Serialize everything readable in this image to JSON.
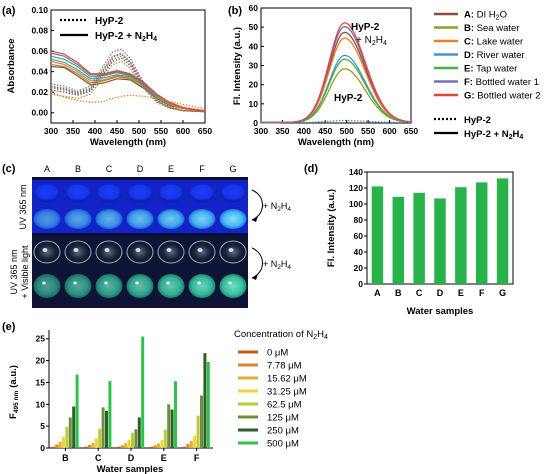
{
  "panels": {
    "a": "(a)",
    "b": "(b)",
    "c": "(c)",
    "d": "(d)",
    "e": "(e)"
  },
  "colors": {
    "A": "#8e4b3e",
    "B": "#9a9a2a",
    "C": "#f07f2a",
    "D": "#4a90d9",
    "E": "#46b040",
    "F": "#7a6fb5",
    "G": "#e5443c",
    "bar_green": "#27b24a",
    "conc": [
      "#c75c14",
      "#d98a28",
      "#e0b030",
      "#f2d23a",
      "#b8cc3e",
      "#6e8f3e",
      "#2f5e2a",
      "#2fc24a"
    ]
  },
  "chart_data": [
    {
      "id": "a",
      "type": "line",
      "xlabel": "Wavelength (nm)",
      "ylabel": "Absorbance",
      "xlim": [
        300,
        650
      ],
      "ylim": [
        -0.01,
        0.1
      ],
      "xticks": [
        300,
        350,
        400,
        450,
        500,
        550,
        600,
        650
      ],
      "yticks": [
        0.0,
        0.02,
        0.04,
        0.06,
        0.08,
        0.1
      ],
      "ytick_labels": [
        "0.00",
        "0.02",
        "0.04",
        "0.06",
        "0.08",
        "0.10"
      ],
      "legend": [
        {
          "label_a": "HyP-2",
          "label_b": "",
          "style": "dotted"
        },
        {
          "label_a": "HyP-2 + N",
          "label_b": "2",
          "label_c": "H",
          "label_d": "4",
          "style": "solid"
        }
      ],
      "series": [
        {
          "sample": "A",
          "style": "solid",
          "x": [
            300,
            330,
            360,
            390,
            420,
            450,
            480,
            510,
            540,
            570,
            600,
            630,
            650
          ],
          "y": [
            0.045,
            0.044,
            0.036,
            0.027,
            0.029,
            0.033,
            0.032,
            0.024,
            0.014,
            0.007,
            0.004,
            0.002,
            0.002
          ]
        },
        {
          "sample": "B",
          "style": "solid",
          "x": [
            300,
            330,
            360,
            390,
            420,
            450,
            480,
            510,
            540,
            570,
            600,
            630,
            650
          ],
          "y": [
            0.047,
            0.045,
            0.038,
            0.029,
            0.031,
            0.035,
            0.033,
            0.025,
            0.015,
            0.008,
            0.004,
            0.002,
            0.002
          ]
        },
        {
          "sample": "C",
          "style": "solid",
          "x": [
            300,
            330,
            360,
            390,
            420,
            450,
            480,
            510,
            540,
            570,
            600,
            630,
            650
          ],
          "y": [
            0.05,
            0.047,
            0.04,
            0.031,
            0.032,
            0.036,
            0.034,
            0.026,
            0.016,
            0.008,
            0.004,
            0.002,
            0.002
          ]
        },
        {
          "sample": "D",
          "style": "solid",
          "x": [
            300,
            330,
            360,
            390,
            420,
            450,
            480,
            510,
            540,
            570,
            600,
            630,
            650
          ],
          "y": [
            0.052,
            0.049,
            0.042,
            0.033,
            0.034,
            0.037,
            0.035,
            0.027,
            0.016,
            0.009,
            0.005,
            0.003,
            0.002
          ]
        },
        {
          "sample": "E",
          "style": "solid",
          "x": [
            300,
            330,
            360,
            390,
            420,
            450,
            480,
            510,
            540,
            570,
            600,
            630,
            650
          ],
          "y": [
            0.055,
            0.052,
            0.045,
            0.035,
            0.036,
            0.039,
            0.036,
            0.028,
            0.017,
            0.009,
            0.005,
            0.003,
            0.002
          ]
        },
        {
          "sample": "F",
          "style": "solid",
          "x": [
            300,
            330,
            360,
            390,
            420,
            450,
            480,
            510,
            540,
            570,
            600,
            630,
            650
          ],
          "y": [
            0.058,
            0.055,
            0.047,
            0.037,
            0.037,
            0.04,
            0.037,
            0.029,
            0.018,
            0.01,
            0.005,
            0.003,
            0.002
          ]
        },
        {
          "sample": "G",
          "style": "solid",
          "x": [
            300,
            330,
            360,
            390,
            420,
            450,
            480,
            510,
            540,
            570,
            600,
            630,
            650
          ],
          "y": [
            0.06,
            0.057,
            0.049,
            0.038,
            0.038,
            0.041,
            0.038,
            0.03,
            0.018,
            0.01,
            0.005,
            0.003,
            0.002
          ]
        },
        {
          "sample": "A",
          "style": "dotted",
          "x": [
            300,
            330,
            360,
            390,
            420,
            440,
            460,
            480,
            510,
            540,
            570,
            600,
            650
          ],
          "y": [
            0.022,
            0.02,
            0.017,
            0.021,
            0.038,
            0.05,
            0.053,
            0.046,
            0.026,
            0.011,
            0.005,
            0.002,
            0.001
          ]
        },
        {
          "sample": "B",
          "style": "dotted",
          "x": [
            300,
            330,
            360,
            390,
            420,
            440,
            460,
            480,
            510,
            540,
            570,
            600,
            650
          ],
          "y": [
            0.018,
            0.016,
            0.014,
            0.018,
            0.035,
            0.047,
            0.05,
            0.043,
            0.024,
            0.01,
            0.004,
            0.002,
            0.001
          ]
        },
        {
          "sample": "C",
          "style": "dotted",
          "x": [
            300,
            330,
            360,
            390,
            420,
            440,
            460,
            480,
            510,
            540,
            570,
            600,
            650
          ],
          "y": [
            0.02,
            0.015,
            0.012,
            0.01,
            0.011,
            0.014,
            0.016,
            0.017,
            0.016,
            0.014,
            0.011,
            0.008,
            0.004
          ]
        },
        {
          "sample": "D",
          "style": "dotted",
          "x": [
            300,
            330,
            360,
            390,
            420,
            440,
            460,
            480,
            510,
            540,
            570,
            600,
            650
          ],
          "y": [
            0.024,
            0.022,
            0.018,
            0.022,
            0.04,
            0.052,
            0.055,
            0.048,
            0.027,
            0.011,
            0.005,
            0.002,
            0.001
          ]
        },
        {
          "sample": "E",
          "style": "dotted",
          "x": [
            300,
            330,
            360,
            390,
            420,
            440,
            460,
            480,
            510,
            540,
            570,
            600,
            650
          ],
          "y": [
            0.026,
            0.024,
            0.02,
            0.024,
            0.043,
            0.055,
            0.058,
            0.05,
            0.028,
            0.012,
            0.005,
            0.002,
            0.001
          ]
        },
        {
          "sample": "F",
          "style": "dotted",
          "x": [
            300,
            330,
            360,
            390,
            420,
            440,
            460,
            480,
            510,
            540,
            570,
            600,
            650
          ],
          "y": [
            0.028,
            0.026,
            0.021,
            0.026,
            0.046,
            0.059,
            0.062,
            0.053,
            0.03,
            0.013,
            0.006,
            0.002,
            0.001
          ]
        },
        {
          "sample": "G",
          "style": "dotted",
          "x": [
            300,
            330,
            360,
            390,
            420,
            440,
            460,
            480,
            510,
            540,
            570,
            600,
            650
          ],
          "y": [
            0.025,
            0.023,
            0.019,
            0.023,
            0.042,
            0.054,
            0.057,
            0.049,
            0.028,
            0.012,
            0.005,
            0.002,
            0.001
          ]
        }
      ]
    },
    {
      "id": "b",
      "type": "line",
      "xlabel": "Wavelength (nm)",
      "ylabel": "Fl. Intensity (a.u.)",
      "xlim": [
        300,
        650
      ],
      "ylim": [
        0,
        60
      ],
      "xticks": [
        300,
        350,
        400,
        450,
        500,
        550,
        600,
        650
      ],
      "yticks": [
        0,
        10,
        20,
        30,
        40,
        50,
        60
      ],
      "annotation_1": "HyP-2",
      "annotation_1b": "+ N",
      "annotation_1c": "2",
      "annotation_1d": "H",
      "annotation_1e": "4",
      "annotation_2": "HyP-2",
      "peak_x": 495,
      "width_nm": 48,
      "series": [
        {
          "sample": "A",
          "style": "solid",
          "peak": 47
        },
        {
          "sample": "B",
          "style": "solid",
          "peak": 28
        },
        {
          "sample": "C",
          "style": "solid",
          "peak": 44
        },
        {
          "sample": "D",
          "style": "solid",
          "peak": 35
        },
        {
          "sample": "E",
          "style": "solid",
          "peak": 33
        },
        {
          "sample": "F",
          "style": "solid",
          "peak": 50
        },
        {
          "sample": "G",
          "style": "solid",
          "peak": 52
        },
        {
          "sample": "D",
          "style": "dotted",
          "peak": 1
        }
      ]
    },
    {
      "id": "d",
      "type": "bar",
      "categories": [
        "A",
        "B",
        "C",
        "D",
        "E",
        "F",
        "G"
      ],
      "values": [
        122,
        109,
        114,
        107,
        121,
        127,
        132
      ],
      "xlabel": "Water samples",
      "ylabel": "Fl. Intensity (a.u.)",
      "ylim": [
        0,
        140
      ],
      "yticks": [
        0,
        20,
        40,
        60,
        80,
        100,
        120,
        140
      ]
    },
    {
      "id": "e",
      "type": "bar",
      "categories": [
        "B",
        "C",
        "D",
        "E",
        "F"
      ],
      "xlabel": "Water samples",
      "ylabel_main": "F",
      "ylabel_sub": "495 nm",
      "ylabel_unit": "(a.u.)",
      "ylim": [
        0,
        27
      ],
      "yticks": [
        0,
        5,
        10,
        15,
        20,
        25
      ],
      "series": [
        {
          "name": "0 μM",
          "values": [
            0.3,
            0.3,
            0.3,
            0.3,
            0.3
          ]
        },
        {
          "name": "7.78 μM",
          "values": [
            0.8,
            0.7,
            0.6,
            0.6,
            0.9
          ]
        },
        {
          "name": "15.62 μM",
          "values": [
            1.4,
            1.2,
            1.1,
            1.0,
            1.6
          ]
        },
        {
          "name": "31.25 μM",
          "values": [
            2.5,
            2.2,
            1.9,
            1.8,
            2.8
          ]
        },
        {
          "name": "62.5 μM",
          "values": [
            4.8,
            4.4,
            3.5,
            4.2,
            7.4
          ]
        },
        {
          "name": "125 μM",
          "values": [
            7.0,
            9.3,
            4.3,
            10.0,
            12.0
          ]
        },
        {
          "name": "250 μM",
          "values": [
            9.5,
            8.5,
            7.0,
            8.8,
            21.7
          ]
        },
        {
          "name": "500 μM",
          "values": [
            16.8,
            15.3,
            25.5,
            15.3,
            19.7
          ]
        }
      ]
    }
  ],
  "legend_b": [
    {
      "letter": "A:",
      "name": "DI H",
      "sub": "2",
      "tail": "O",
      "sample": "A"
    },
    {
      "letter": "B:",
      "name": "Sea water",
      "sample": "B"
    },
    {
      "letter": "C:",
      "name": "Lake water",
      "sample": "C"
    },
    {
      "letter": "D:",
      "name": "River water",
      "sample": "D"
    },
    {
      "letter": "E:",
      "name": "Tap water",
      "sample": "E"
    },
    {
      "letter": "F:",
      "name": "Bottled water 1",
      "sample": "F"
    },
    {
      "letter": "G:",
      "name": "Bottled water 2",
      "sample": "G"
    }
  ],
  "legend_b_styles": [
    {
      "label": "HyP-2",
      "style": "dotted"
    },
    {
      "label": "HyP-2 + N",
      "sub1": "2",
      "mid": "H",
      "sub2": "4",
      "style": "solid"
    }
  ],
  "legend_e_title": {
    "text": "Concentration of N",
    "sub1": "2",
    "mid": "H",
    "sub2": "4"
  },
  "photo": {
    "columns": [
      "A",
      "B",
      "C",
      "D",
      "E",
      "F",
      "G"
    ],
    "row1_label": "UV 365 nm",
    "row2_label_1": "UV 365 nm",
    "row2_label_2": "+ Visible light",
    "arrow_label": {
      "text": "+ N",
      "sub1": "2",
      "mid": "H",
      "sub2": "4"
    }
  }
}
